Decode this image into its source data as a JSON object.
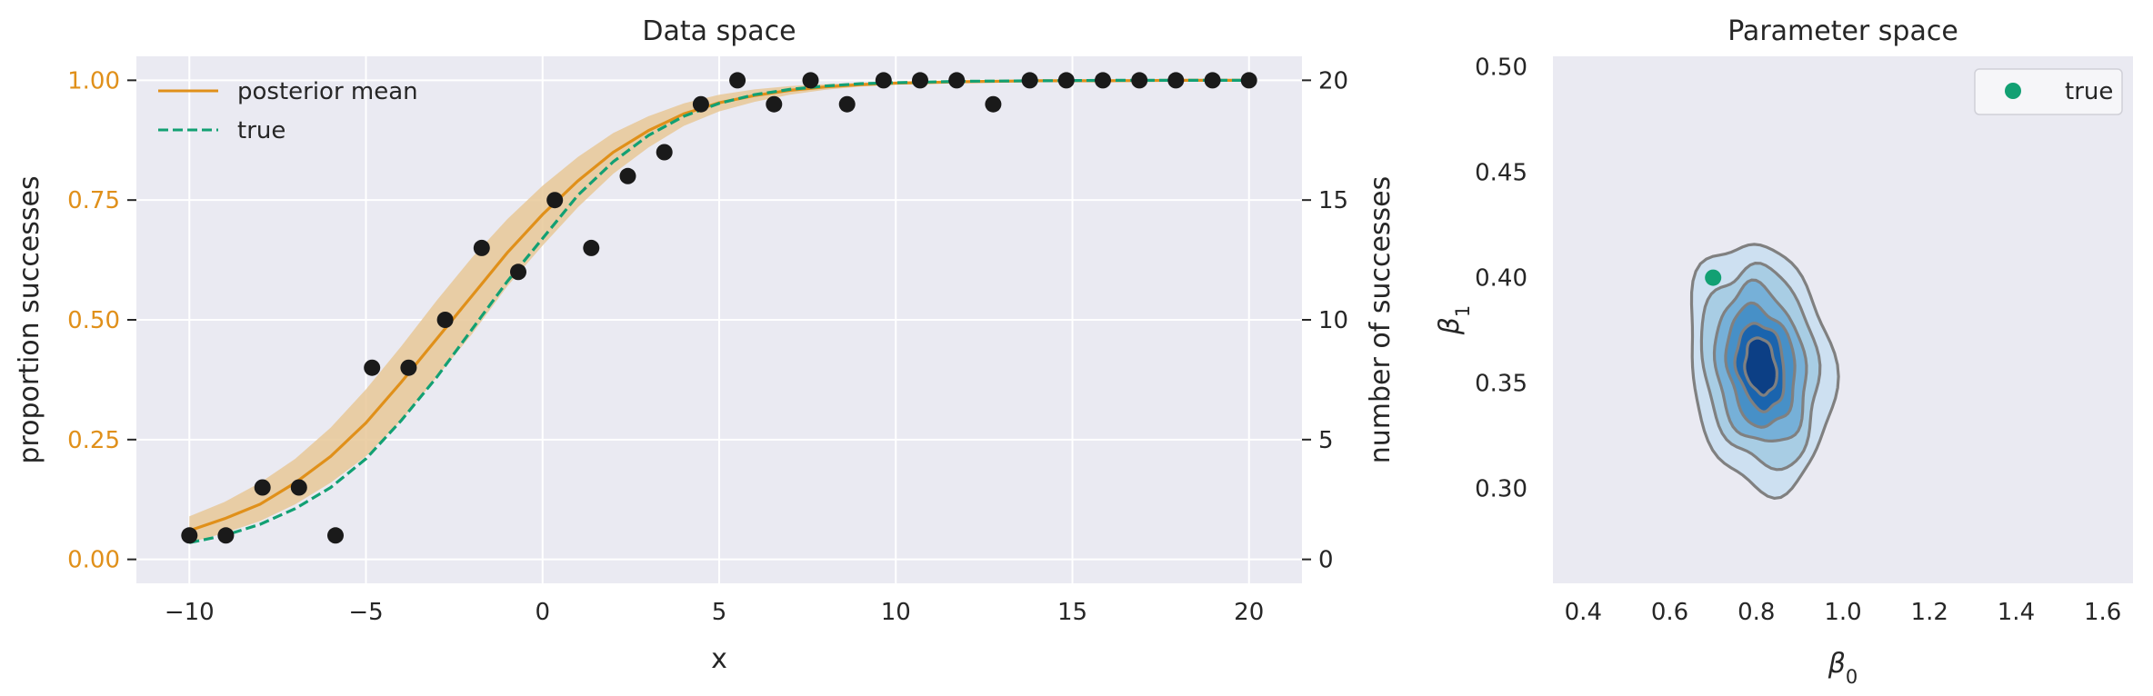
{
  "chart_data": [
    {
      "type": "line",
      "title": "Data space",
      "xlabel": "x",
      "ylabel": "proportion successes",
      "ylabel_right": "number of successes",
      "xlim": [
        -11.5,
        21.5
      ],
      "ylim": [
        -0.05,
        1.05
      ],
      "ylim_right": [
        -1,
        21
      ],
      "xticks": [
        "−10",
        "−5",
        "0",
        "5",
        "10",
        "15",
        "20"
      ],
      "xtick_values": [
        -10,
        -5,
        0,
        5,
        10,
        15,
        20
      ],
      "yticks": [
        "0.00",
        "0.25",
        "0.50",
        "0.75",
        "1.00"
      ],
      "ytick_values": [
        0,
        0.25,
        0.5,
        0.75,
        1.0
      ],
      "yticks_right": [
        "0",
        "5",
        "10",
        "15",
        "20"
      ],
      "ytick_right_values": [
        0,
        5,
        10,
        15,
        20
      ],
      "grid": true,
      "legend_position": "top-left",
      "colors": {
        "posterior": "#e0901a",
        "band": "#e8c898",
        "true": "#12a073",
        "points": "#1a1a1a",
        "ylabel": "#e0901a",
        "background": "#eaeaf2"
      },
      "series": [
        {
          "name": "posterior mean",
          "style": "solid",
          "x": [
            -10,
            -9,
            -8,
            -7,
            -6,
            -5,
            -4,
            -3,
            -2,
            -1,
            0,
            1,
            2,
            3,
            4,
            5,
            6,
            7,
            8,
            9,
            10,
            12,
            14,
            16,
            18,
            20
          ],
          "y": [
            0.06,
            0.085,
            0.115,
            0.16,
            0.215,
            0.285,
            0.37,
            0.46,
            0.55,
            0.64,
            0.72,
            0.79,
            0.85,
            0.895,
            0.93,
            0.953,
            0.968,
            0.979,
            0.986,
            0.991,
            0.994,
            0.997,
            0.999,
            0.999,
            1.0,
            1.0
          ]
        },
        {
          "name": "true",
          "style": "dashed",
          "x": [
            -10,
            -9,
            -8,
            -7,
            -6,
            -5,
            -4,
            -3,
            -2,
            -1,
            0,
            1,
            2,
            3,
            4,
            5,
            6,
            7,
            8,
            9,
            10,
            12,
            14,
            16,
            18,
            20
          ],
          "y": [
            0.035,
            0.05,
            0.073,
            0.106,
            0.15,
            0.21,
            0.29,
            0.38,
            0.48,
            0.58,
            0.67,
            0.76,
            0.83,
            0.885,
            0.925,
            0.952,
            0.97,
            0.981,
            0.988,
            0.993,
            0.995,
            0.998,
            0.999,
            1.0,
            1.0,
            1.0
          ]
        }
      ],
      "band": {
        "x": [
          -10,
          -9,
          -8,
          -7,
          -6,
          -5,
          -4,
          -3,
          -2,
          -1,
          0,
          1,
          2,
          3,
          4,
          5,
          6,
          7,
          8,
          9,
          10,
          12,
          14,
          16,
          18,
          20
        ],
        "lower": [
          0.035,
          0.055,
          0.08,
          0.115,
          0.16,
          0.215,
          0.29,
          0.38,
          0.47,
          0.57,
          0.655,
          0.735,
          0.805,
          0.86,
          0.905,
          0.935,
          0.955,
          0.97,
          0.98,
          0.987,
          0.991,
          0.995,
          0.997,
          0.998,
          0.999,
          0.999
        ],
        "upper": [
          0.09,
          0.12,
          0.16,
          0.21,
          0.275,
          0.355,
          0.445,
          0.54,
          0.63,
          0.71,
          0.78,
          0.84,
          0.89,
          0.925,
          0.952,
          0.97,
          0.981,
          0.988,
          0.992,
          0.995,
          0.997,
          0.999,
          1.0,
          1.0,
          1.0,
          1.0
        ]
      },
      "points": {
        "x": [
          -10,
          -8.966,
          -7.931,
          -6.897,
          -5.862,
          -4.828,
          -3.793,
          -2.759,
          -1.724,
          -0.69,
          0.345,
          1.379,
          2.414,
          3.448,
          4.483,
          5.517,
          6.552,
          7.586,
          8.621,
          9.655,
          10.69,
          11.724,
          12.759,
          13.793,
          14.828,
          15.862,
          16.897,
          17.931,
          18.966,
          20
        ],
        "successes": [
          1,
          1,
          3,
          3,
          1,
          8,
          8,
          10,
          13,
          12,
          15,
          13,
          16,
          17,
          19,
          20,
          19,
          20,
          19,
          20,
          20,
          20,
          19,
          20,
          20,
          20,
          20,
          20,
          20,
          20
        ],
        "trials": 20
      }
    },
    {
      "type": "contour",
      "title": "Parameter space",
      "xlabel": "β0",
      "ylabel": "β1",
      "xlim": [
        0.33,
        1.67
      ],
      "ylim": [
        0.255,
        0.505
      ],
      "xticks": [
        "0.4",
        "0.6",
        "0.8",
        "1.0",
        "1.2",
        "1.4",
        "1.6"
      ],
      "xtick_values": [
        0.4,
        0.6,
        0.8,
        1.0,
        1.2,
        1.4,
        1.6
      ],
      "yticks": [
        "0.30",
        "0.35",
        "0.40",
        "0.45",
        "0.50"
      ],
      "ytick_values": [
        0.3,
        0.35,
        0.4,
        0.45,
        0.5
      ],
      "grid": false,
      "legend_position": "top-right",
      "center": [
        0.81,
        0.358
      ],
      "levels": [
        {
          "rx": 0.255,
          "ry": 0.066,
          "fill": "#cde0f1"
        },
        {
          "rx": 0.205,
          "ry": 0.053,
          "fill": "#a8cde4"
        },
        {
          "rx": 0.16,
          "ry": 0.042,
          "fill": "#76b0d8"
        },
        {
          "rx": 0.12,
          "ry": 0.032,
          "fill": "#4790c7"
        },
        {
          "rx": 0.085,
          "ry": 0.023,
          "fill": "#1a64ae"
        },
        {
          "rx": 0.055,
          "ry": 0.015,
          "fill": "#0c3f85"
        }
      ],
      "true_point": {
        "name": "true",
        "x": 0.7,
        "y": 0.4,
        "color": "#12a073"
      }
    }
  ]
}
